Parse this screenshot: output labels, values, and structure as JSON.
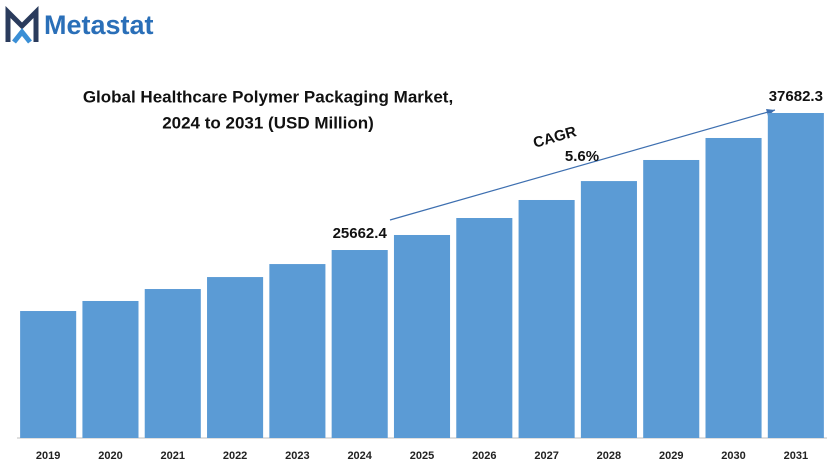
{
  "brand": "Metastat",
  "chart_data": {
    "type": "bar",
    "title": [
      "Global Healthcare Polymer Packaging Market,",
      "2024 to 2031 (USD Million)"
    ],
    "categories": [
      "2019",
      "2020",
      "2021",
      "2022",
      "2023",
      "2024",
      "2025",
      "2026",
      "2027",
      "2028",
      "2029",
      "2030",
      "2031"
    ],
    "values": [
      20310,
      21190,
      22240,
      23290,
      24430,
      25662.4,
      26980,
      28470,
      30050,
      31710,
      33560,
      35490,
      37682.3
    ],
    "color": "#5b9bd5",
    "ylim": [
      9170,
      39700
    ],
    "annotations": [
      "CAGR",
      "5.6%"
    ]
  }
}
